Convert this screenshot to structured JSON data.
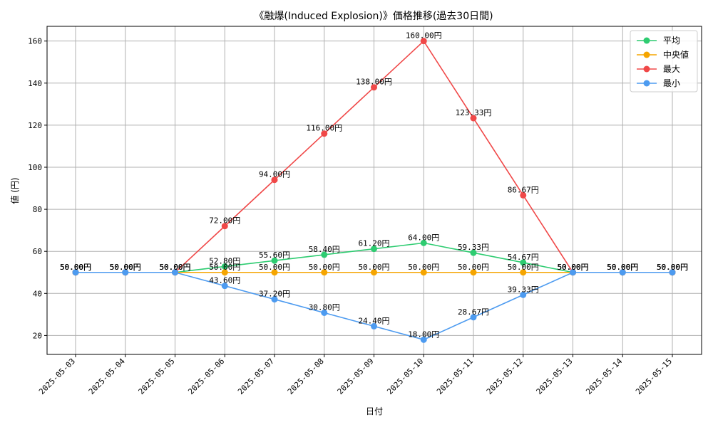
{
  "chart_data": {
    "type": "line",
    "title": "《融爆(Induced Explosion)》価格推移(過去30日間)",
    "xlabel": "日付",
    "ylabel": "値 (円)",
    "categories": [
      "2025-05-03",
      "2025-05-04",
      "2025-05-05",
      "2025-05-06",
      "2025-05-07",
      "2025-05-08",
      "2025-05-09",
      "2025-05-10",
      "2025-05-11",
      "2025-05-12",
      "2025-05-13",
      "2025-05-14",
      "2025-05-15"
    ],
    "ylim": [
      11,
      167
    ],
    "yticks": [
      20,
      40,
      60,
      80,
      100,
      120,
      140,
      160
    ],
    "grid": true,
    "legend_position": "top-right",
    "label_suffix": "円",
    "series": [
      {
        "name": "平均",
        "color": "#2ecc71",
        "values": [
          50.0,
          50.0,
          50.0,
          52.8,
          55.6,
          58.4,
          61.2,
          64.0,
          59.33,
          54.67,
          50.0,
          50.0,
          50.0
        ]
      },
      {
        "name": "中央値",
        "color": "#f5a500",
        "values": [
          50.0,
          50.0,
          50.0,
          50.0,
          50.0,
          50.0,
          50.0,
          50.0,
          50.0,
          50.0,
          50.0,
          50.0,
          50.0
        ]
      },
      {
        "name": "最大",
        "color": "#f04848",
        "values": [
          50.0,
          50.0,
          50.0,
          72.0,
          94.0,
          116.0,
          138.0,
          160.0,
          123.33,
          86.67,
          50.0,
          50.0,
          50.0
        ]
      },
      {
        "name": "最小",
        "color": "#4d9bf0",
        "values": [
          50.0,
          50.0,
          50.0,
          43.6,
          37.2,
          30.8,
          24.4,
          18.0,
          28.67,
          39.33,
          50.0,
          50.0,
          50.0
        ]
      }
    ]
  }
}
